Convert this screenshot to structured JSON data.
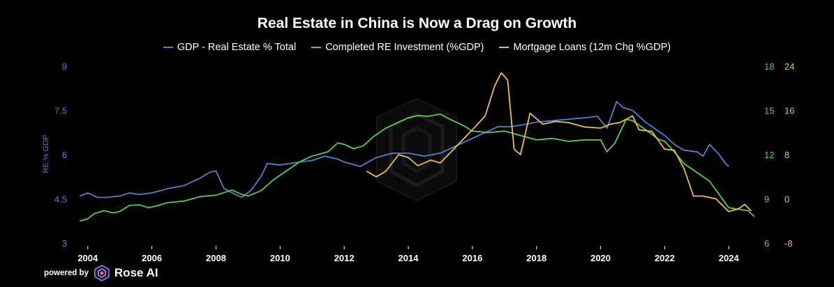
{
  "colors": {
    "background": "#000000",
    "gdp": "#4f81d1",
    "investment": "#55d04a",
    "mortgage": "#f0bf45",
    "tick": "#ffffff"
  },
  "footer": {
    "powered_by": "powered by",
    "brand": "Rose AI",
    "logo_icon": "rose-ai-logo-icon"
  },
  "watermark_icon": "rose-ai-watermark-icon",
  "chart_data": {
    "type": "line",
    "title": "Real Estate in China is Now a Drag on Growth",
    "xlabel": "",
    "grid": false,
    "legend_position": "top-center",
    "x_axis": {
      "range": [
        2003.7,
        2024.8
      ],
      "ticks": [
        "2004",
        "2006",
        "2008",
        "2010",
        "2012",
        "2014",
        "2016",
        "2018",
        "2020",
        "2022",
        "2024"
      ]
    },
    "y_axes": [
      {
        "id": "left",
        "label": "RE % GDP",
        "range": [
          3,
          9
        ],
        "ticks": [
          "3",
          "4.5",
          "6",
          "7.5",
          "9"
        ]
      },
      {
        "id": "right1",
        "label": "",
        "range": [
          6,
          18
        ],
        "ticks": [
          "6",
          "9",
          "12",
          "15",
          "18"
        ]
      },
      {
        "id": "right2",
        "label": "",
        "range": [
          -8,
          24
        ],
        "ticks": [
          "-8",
          "0",
          "8",
          "16",
          "24"
        ]
      }
    ],
    "series": [
      {
        "name": "GDP - Real Estate % Total",
        "axis": "left",
        "color": "#4f81d1",
        "points": [
          [
            2003.75,
            4.6
          ],
          [
            2004.0,
            4.7
          ],
          [
            2004.3,
            4.55
          ],
          [
            2004.6,
            4.55
          ],
          [
            2005.0,
            4.6
          ],
          [
            2005.3,
            4.7
          ],
          [
            2005.6,
            4.65
          ],
          [
            2006.0,
            4.7
          ],
          [
            2006.5,
            4.85
          ],
          [
            2007.0,
            4.95
          ],
          [
            2007.5,
            5.2
          ],
          [
            2007.8,
            5.4
          ],
          [
            2008.0,
            5.45
          ],
          [
            2008.25,
            4.85
          ],
          [
            2008.6,
            4.65
          ],
          [
            2008.8,
            4.55
          ],
          [
            2009.1,
            4.8
          ],
          [
            2009.4,
            5.25
          ],
          [
            2009.6,
            5.7
          ],
          [
            2010.0,
            5.65
          ],
          [
            2010.3,
            5.7
          ],
          [
            2010.6,
            5.75
          ],
          [
            2011.0,
            5.8
          ],
          [
            2011.4,
            5.95
          ],
          [
            2011.8,
            5.85
          ],
          [
            2012.0,
            5.75
          ],
          [
            2012.5,
            5.6
          ],
          [
            2013.0,
            5.9
          ],
          [
            2013.5,
            6.05
          ],
          [
            2014.0,
            6.05
          ],
          [
            2014.5,
            5.95
          ],
          [
            2015.0,
            6.05
          ],
          [
            2015.5,
            6.3
          ],
          [
            2016.0,
            6.55
          ],
          [
            2016.5,
            6.8
          ],
          [
            2016.8,
            6.95
          ],
          [
            2017.2,
            6.95
          ],
          [
            2017.5,
            7.0
          ],
          [
            2018.0,
            7.1
          ],
          [
            2018.5,
            7.15
          ],
          [
            2019.0,
            7.2
          ],
          [
            2019.5,
            7.25
          ],
          [
            2019.9,
            7.3
          ],
          [
            2020.2,
            6.9
          ],
          [
            2020.5,
            7.8
          ],
          [
            2020.7,
            7.6
          ],
          [
            2021.0,
            7.5
          ],
          [
            2021.4,
            7.1
          ],
          [
            2021.8,
            6.8
          ],
          [
            2022.0,
            6.65
          ],
          [
            2022.3,
            6.35
          ],
          [
            2022.6,
            6.15
          ],
          [
            2023.0,
            6.1
          ],
          [
            2023.2,
            5.95
          ],
          [
            2023.4,
            6.35
          ],
          [
            2023.7,
            6.0
          ],
          [
            2023.9,
            5.7
          ],
          [
            2024.0,
            5.6
          ]
        ]
      },
      {
        "name": "Completed RE Investment (%GDP)",
        "axis": "right1",
        "color": "#55d04a",
        "points": [
          [
            2003.75,
            7.5
          ],
          [
            2004.0,
            7.65
          ],
          [
            2004.2,
            8.0
          ],
          [
            2004.5,
            8.2
          ],
          [
            2004.8,
            8.05
          ],
          [
            2005.0,
            8.15
          ],
          [
            2005.3,
            8.55
          ],
          [
            2005.6,
            8.6
          ],
          [
            2005.9,
            8.4
          ],
          [
            2006.2,
            8.55
          ],
          [
            2006.5,
            8.75
          ],
          [
            2007.0,
            8.85
          ],
          [
            2007.5,
            9.15
          ],
          [
            2008.0,
            9.25
          ],
          [
            2008.5,
            9.6
          ],
          [
            2008.8,
            9.3
          ],
          [
            2009.0,
            9.2
          ],
          [
            2009.4,
            9.55
          ],
          [
            2009.8,
            10.3
          ],
          [
            2010.2,
            10.9
          ],
          [
            2010.6,
            11.5
          ],
          [
            2011.0,
            11.9
          ],
          [
            2011.5,
            12.2
          ],
          [
            2011.8,
            12.8
          ],
          [
            2012.0,
            12.7
          ],
          [
            2012.3,
            12.4
          ],
          [
            2012.6,
            12.6
          ],
          [
            2012.9,
            13.2
          ],
          [
            2013.3,
            13.8
          ],
          [
            2013.7,
            14.2
          ],
          [
            2014.0,
            14.5
          ],
          [
            2014.3,
            14.65
          ],
          [
            2014.6,
            14.6
          ],
          [
            2015.0,
            14.75
          ],
          [
            2015.3,
            14.4
          ],
          [
            2015.7,
            14.0
          ],
          [
            2016.0,
            13.6
          ],
          [
            2016.5,
            13.5
          ],
          [
            2017.0,
            13.6
          ],
          [
            2017.5,
            13.3
          ],
          [
            2018.0,
            13.0
          ],
          [
            2018.5,
            13.1
          ],
          [
            2019.0,
            12.9
          ],
          [
            2019.5,
            13.0
          ],
          [
            2020.0,
            13.0
          ],
          [
            2020.2,
            12.2
          ],
          [
            2020.45,
            12.8
          ],
          [
            2020.8,
            14.4
          ],
          [
            2021.0,
            14.3
          ],
          [
            2021.4,
            13.7
          ],
          [
            2021.8,
            13.05
          ],
          [
            2022.0,
            12.9
          ],
          [
            2022.3,
            12.2
          ],
          [
            2022.6,
            11.4
          ],
          [
            2023.0,
            10.8
          ],
          [
            2023.4,
            10.2
          ],
          [
            2023.7,
            9.3
          ],
          [
            2024.0,
            8.4
          ],
          [
            2024.3,
            8.3
          ],
          [
            2024.6,
            8.2
          ],
          [
            2024.8,
            7.8
          ]
        ]
      },
      {
        "name": "Mortgage Loans (12m Chg %GDP)",
        "axis": "right2",
        "color": "#f0bf45",
        "points": [
          [
            2012.7,
            5.0
          ],
          [
            2013.0,
            4.0
          ],
          [
            2013.3,
            5.0
          ],
          [
            2013.7,
            8.0
          ],
          [
            2014.0,
            7.5
          ],
          [
            2014.3,
            6.0
          ],
          [
            2014.7,
            7.0
          ],
          [
            2015.0,
            6.5
          ],
          [
            2015.5,
            9.5
          ],
          [
            2016.0,
            12.5
          ],
          [
            2016.4,
            15.0
          ],
          [
            2016.7,
            20.5
          ],
          [
            2016.9,
            22.8
          ],
          [
            2017.1,
            21.5
          ],
          [
            2017.3,
            9.0
          ],
          [
            2017.5,
            8.0
          ],
          [
            2017.8,
            15.5
          ],
          [
            2018.2,
            13.5
          ],
          [
            2018.6,
            14.0
          ],
          [
            2019.0,
            13.8
          ],
          [
            2019.5,
            13.0
          ],
          [
            2020.0,
            12.8
          ],
          [
            2020.3,
            13.5
          ],
          [
            2020.6,
            13.8
          ],
          [
            2021.0,
            15.0
          ],
          [
            2021.2,
            12.5
          ],
          [
            2021.6,
            12.2
          ],
          [
            2022.0,
            9.0
          ],
          [
            2022.3,
            8.8
          ],
          [
            2022.6,
            5.5
          ],
          [
            2022.9,
            0.5
          ],
          [
            2023.2,
            0.5
          ],
          [
            2023.6,
            0.0
          ],
          [
            2024.0,
            -2.3
          ],
          [
            2024.3,
            -1.8
          ],
          [
            2024.5,
            -1.0
          ],
          [
            2024.7,
            -2.2
          ]
        ]
      }
    ]
  }
}
